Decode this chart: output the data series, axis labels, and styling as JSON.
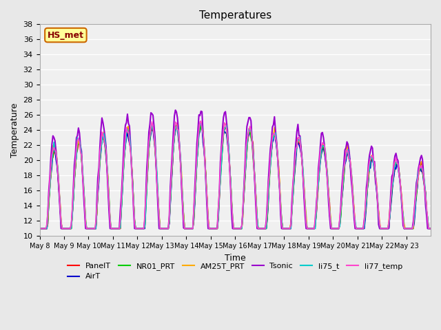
{
  "title": "Temperatures",
  "xlabel": "Time",
  "ylabel": "Temperature",
  "ylim": [
    10,
    38
  ],
  "x_tick_labels": [
    "May 8",
    "May 9",
    "May 10",
    "May 11",
    "May 12",
    "May 13",
    "May 14",
    "May 15",
    "May 16",
    "May 17",
    "May 18",
    "May 19",
    "May 20",
    "May 21",
    "May 22",
    "May 23"
  ],
  "series": {
    "PanelT": {
      "color": "#ff0000",
      "lw": 1.2
    },
    "AirT": {
      "color": "#0000cc",
      "lw": 1.2
    },
    "NR01_PRT": {
      "color": "#00cc00",
      "lw": 1.2
    },
    "AM25T_PRT": {
      "color": "#ffaa00",
      "lw": 1.2
    },
    "Tsonic": {
      "color": "#9900cc",
      "lw": 1.5
    },
    "li75_t": {
      "color": "#00cccc",
      "lw": 1.2
    },
    "li77_temp": {
      "color": "#ff44cc",
      "lw": 1.2
    }
  },
  "annotation_text": "HS_met",
  "annotation_bg": "#ffff99",
  "annotation_border": "#cc6600",
  "annotation_text_color": "#880000",
  "bg_color": "#e8e8e8",
  "plot_bg_color": "#f0f0f0",
  "grid_color": "#ffffff",
  "title_fontsize": 11
}
